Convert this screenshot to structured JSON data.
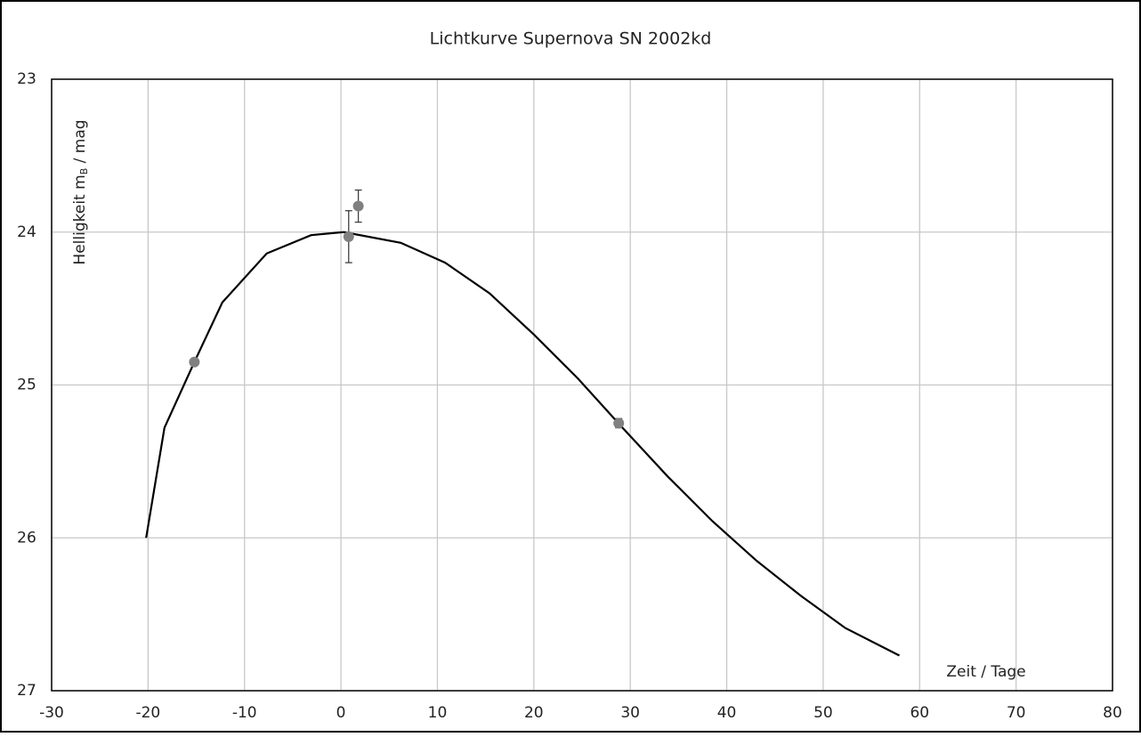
{
  "chart_data": {
    "type": "scatter",
    "title": "Lichtkurve Supernova SN 2002kd",
    "xlabel": "Zeit / Tage",
    "ylabel": [
      "Helligkeit  m",
      "B",
      "  / mag"
    ],
    "xlim": [
      -30,
      80
    ],
    "xticks": [
      -30,
      -20,
      -10,
      0,
      10,
      20,
      30,
      40,
      50,
      60,
      70,
      80
    ],
    "ylim": [
      23,
      27
    ],
    "yticks": [
      23,
      24,
      25,
      26,
      27
    ],
    "y_inverted": true,
    "grid": true,
    "series": [
      {
        "type": "line",
        "color": "#000000",
        "x": [
          -20.2,
          -18.3,
          -15.2,
          -12.3,
          -7.7,
          -3.1,
          0.3,
          6.2,
          10.8,
          15.4,
          20.0,
          24.6,
          29.2,
          33.9,
          38.5,
          43.1,
          47.7,
          52.3,
          57.9
        ],
        "values": [
          26.0,
          25.28,
          24.85,
          24.46,
          24.14,
          24.02,
          24.0,
          24.07,
          24.2,
          24.4,
          24.67,
          24.96,
          25.28,
          25.6,
          25.89,
          26.15,
          26.38,
          26.59,
          26.77
        ]
      },
      {
        "type": "scatter",
        "color": "#808080",
        "error_color": "#404040",
        "x": [
          -15.2,
          0.8,
          1.8,
          28.8
        ],
        "values": [
          24.85,
          24.03,
          23.83,
          25.25
        ],
        "errors": [
          0.0,
          0.17,
          0.105,
          0.03
        ]
      }
    ]
  }
}
